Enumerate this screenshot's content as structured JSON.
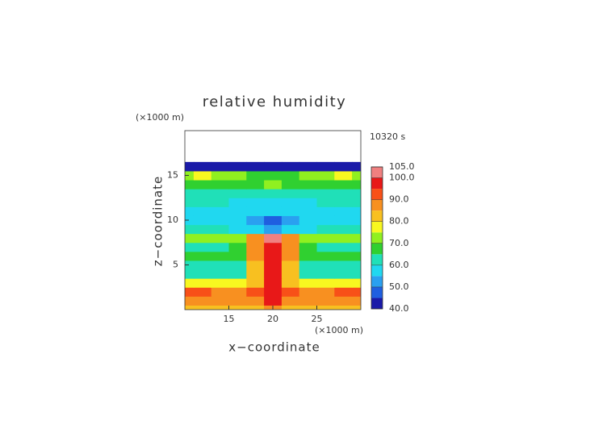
{
  "chart_data": {
    "type": "contour",
    "title": "relative humidity",
    "xlabel": "x−coordinate",
    "ylabel": "z−coordinate",
    "x_unit": "(×1000 m)",
    "y_unit": "(×1000 m)",
    "annotation": "10320 s",
    "xlim": [
      10,
      30
    ],
    "ylim": [
      0,
      20
    ],
    "xticks": [
      15,
      20,
      25
    ],
    "yticks": [
      5,
      10,
      15
    ],
    "x": [
      10,
      12,
      14,
      16,
      18,
      20,
      22,
      24,
      26,
      28,
      30
    ],
    "z": [
      0,
      1,
      2,
      3,
      4,
      5,
      6,
      7,
      8,
      9,
      10,
      11,
      12,
      13,
      14,
      15,
      16
    ],
    "values": [
      [
        80,
        80,
        80,
        80,
        82,
        85,
        82,
        80,
        80,
        80,
        80
      ],
      [
        85,
        85,
        85,
        85,
        88,
        95,
        88,
        85,
        85,
        85,
        85
      ],
      [
        92,
        90,
        88,
        88,
        90,
        97,
        90,
        88,
        88,
        90,
        92
      ],
      [
        78,
        78,
        77,
        77,
        80,
        95,
        80,
        77,
        77,
        78,
        78
      ],
      [
        63,
        63,
        62,
        62,
        80,
        97,
        80,
        62,
        62,
        63,
        63
      ],
      [
        62,
        62,
        62,
        63,
        82,
        97,
        82,
        63,
        62,
        62,
        62
      ],
      [
        66,
        66,
        65,
        66,
        85,
        97,
        85,
        66,
        65,
        66,
        66
      ],
      [
        64,
        64,
        64,
        66,
        88,
        97,
        88,
        66,
        64,
        64,
        64
      ],
      [
        70,
        70,
        70,
        72,
        88,
        102,
        88,
        72,
        70,
        70,
        70
      ],
      [
        60,
        60,
        60,
        58,
        56,
        53,
        56,
        58,
        60,
        60,
        60
      ],
      [
        58,
        58,
        57,
        56,
        52,
        48,
        52,
        56,
        57,
        58,
        58
      ],
      [
        57,
        57,
        57,
        57,
        57,
        55,
        57,
        57,
        57,
        57,
        57
      ],
      [
        60,
        60,
        60,
        58,
        57,
        56,
        57,
        58,
        60,
        60,
        60
      ],
      [
        63,
        63,
        62,
        60,
        62,
        63,
        62,
        60,
        62,
        63,
        63
      ],
      [
        66,
        67,
        66,
        66,
        68,
        70,
        68,
        66,
        66,
        67,
        66
      ],
      [
        72,
        76,
        72,
        70,
        68,
        68,
        68,
        70,
        72,
        76,
        72
      ],
      [
        42,
        42,
        43,
        43,
        44,
        44,
        44,
        43,
        43,
        42,
        42
      ]
    ],
    "levels": [
      40,
      45,
      50,
      55,
      60,
      65,
      70,
      75,
      80,
      85,
      90,
      95,
      100,
      105
    ],
    "colors": [
      "#1a1aa8",
      "#1f5fe0",
      "#2aa0f0",
      "#20d8f0",
      "#20e0b8",
      "#30d030",
      "#90f020",
      "#f8f820",
      "#f8c020",
      "#f89020",
      "#f85018",
      "#e81818",
      "#f08080"
    ],
    "colorbar_ticks": [
      {
        "value": 40,
        "label": "40.0"
      },
      {
        "value": 50,
        "label": "50.0"
      },
      {
        "value": 60,
        "label": "60.0"
      },
      {
        "value": 70,
        "label": "70.0"
      },
      {
        "value": 80,
        "label": "80.0"
      },
      {
        "value": 90,
        "label": "90.0"
      },
      {
        "value": 100,
        "label": "100.0"
      },
      {
        "value": 105,
        "label": "105.0"
      }
    ]
  }
}
